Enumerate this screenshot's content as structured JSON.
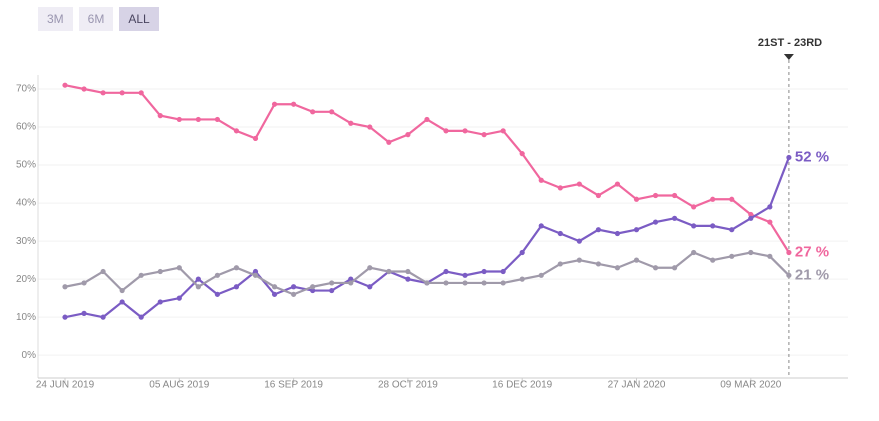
{
  "buttons": [
    "3M",
    "6M",
    "ALL"
  ],
  "active_button": "ALL",
  "chart_data": {
    "type": "line",
    "annotation": "21ST - 23RD",
    "categories": [
      "24 JUN 2019",
      null,
      null,
      null,
      null,
      null,
      "05 AUG 2019",
      null,
      null,
      null,
      null,
      null,
      "16 SEP 2019",
      null,
      null,
      null,
      null,
      null,
      "28 OCT 2019",
      null,
      null,
      null,
      null,
      null,
      "16 DEC 2019",
      null,
      null,
      null,
      null,
      null,
      "27 JAN 2020",
      null,
      null,
      null,
      null,
      null,
      "09 MAR 2020",
      null,
      null
    ],
    "series": [
      {
        "name": null,
        "color": "#f0679e",
        "values": [
          71,
          70,
          69,
          69,
          69,
          63,
          62,
          62,
          62,
          59,
          57,
          66,
          66,
          64,
          64,
          61,
          60,
          56,
          58,
          62,
          59,
          59,
          58,
          59,
          53,
          46,
          44,
          45,
          42,
          45,
          41,
          42,
          42,
          39,
          41,
          41,
          37,
          35,
          27
        ],
        "value_labels": [
          null,
          null,
          null,
          null,
          null,
          null,
          null,
          null,
          null,
          null,
          null,
          null,
          null,
          null,
          null,
          null,
          null,
          null,
          null,
          null,
          null,
          null,
          null,
          null,
          null,
          null,
          null,
          null,
          null,
          null,
          null,
          null,
          null,
          null,
          null,
          null,
          null,
          null,
          "27 %"
        ]
      },
      {
        "name": null,
        "color": "#7b5cc4",
        "values": [
          10,
          11,
          10,
          14,
          10,
          14,
          15,
          20,
          16,
          18,
          22,
          16,
          18,
          17,
          17,
          20,
          18,
          22,
          20,
          19,
          22,
          21,
          22,
          22,
          27,
          34,
          32,
          30,
          33,
          32,
          33,
          35,
          36,
          34,
          34,
          33,
          36,
          39,
          52
        ],
        "value_labels": [
          null,
          null,
          null,
          null,
          null,
          null,
          null,
          null,
          null,
          null,
          null,
          null,
          null,
          null,
          null,
          null,
          null,
          null,
          null,
          null,
          null,
          null,
          null,
          null,
          null,
          null,
          null,
          null,
          null,
          null,
          null,
          null,
          null,
          null,
          null,
          null,
          null,
          null,
          "52 %"
        ]
      },
      {
        "name": null,
        "color": "#a09aaa",
        "values": [
          18,
          19,
          22,
          17,
          21,
          22,
          23,
          18,
          21,
          23,
          21,
          18,
          16,
          18,
          19,
          19,
          23,
          22,
          22,
          19,
          19,
          19,
          19,
          19,
          20,
          21,
          24,
          25,
          24,
          23,
          25,
          23,
          23,
          27,
          25,
          26,
          27,
          26,
          21
        ],
        "value_labels": [
          null,
          null,
          null,
          null,
          null,
          null,
          null,
          null,
          null,
          null,
          null,
          null,
          null,
          null,
          null,
          null,
          null,
          null,
          null,
          null,
          null,
          null,
          null,
          null,
          null,
          null,
          null,
          null,
          null,
          null,
          null,
          null,
          null,
          null,
          null,
          null,
          null,
          null,
          "21 %"
        ]
      }
    ],
    "ylim": [
      -6,
      75
    ],
    "yticks": [
      {
        "value": 0,
        "label": "0%"
      },
      {
        "value": 10,
        "label": "10%"
      },
      {
        "value": 20,
        "label": "20%"
      },
      {
        "value": 30,
        "label": "30%"
      },
      {
        "value": 40,
        "label": "40%"
      },
      {
        "value": 50,
        "label": "50%"
      },
      {
        "value": 60,
        "label": "60%"
      },
      {
        "value": 70,
        "label": "70%"
      }
    ],
    "grid": true
  }
}
